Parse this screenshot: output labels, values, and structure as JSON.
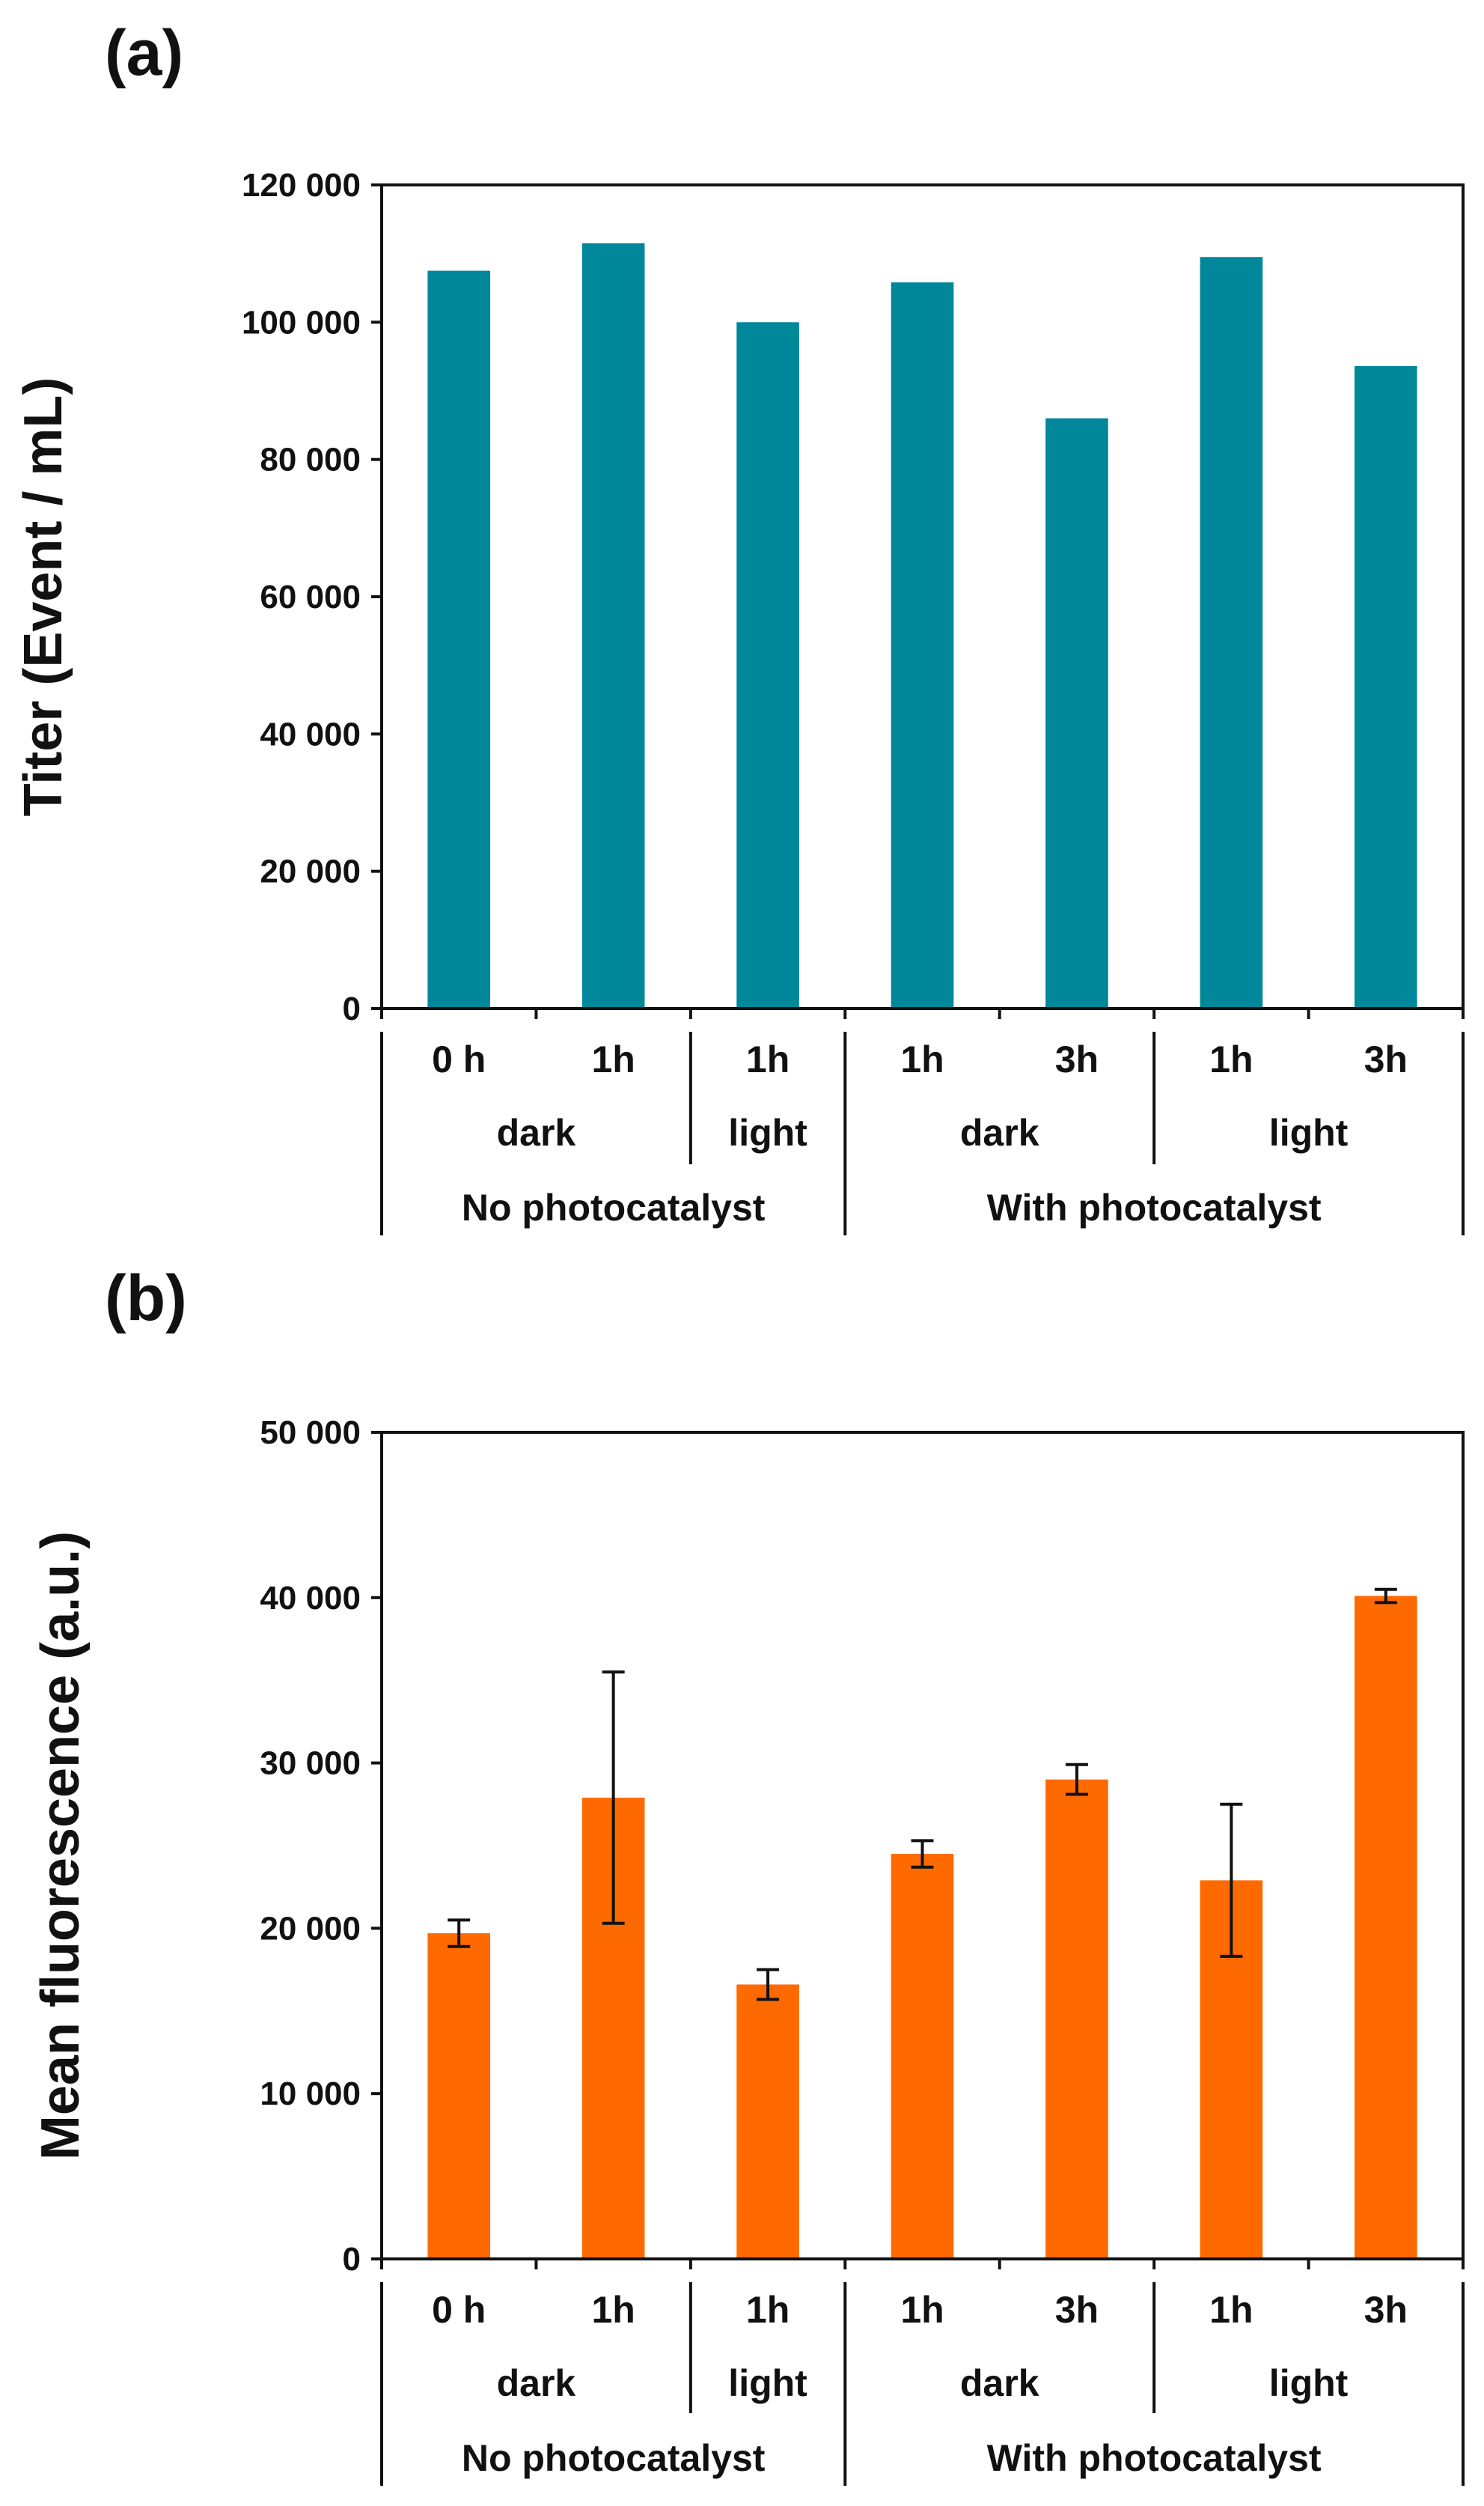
{
  "chart_data": [
    {
      "panel": "(a)",
      "type": "bar",
      "title": "",
      "ylabel": "Titer (Event / mL)",
      "xlabel": "",
      "ylim": [
        0,
        120000
      ],
      "yticks": [
        0,
        20000,
        40000,
        60000,
        80000,
        100000,
        120000
      ],
      "ytick_labels": [
        "0",
        "20 000",
        "40 000",
        "60 000",
        "80 000",
        "100 000",
        "120 000"
      ],
      "grid": false,
      "bar_color": "#00889A",
      "categories": [
        "0 h",
        "1h",
        "1h",
        "1h",
        "3h",
        "1h",
        "3h"
      ],
      "condition_groups": [
        {
          "label": "dark",
          "span": [
            0,
            1
          ]
        },
        {
          "label": "light",
          "span": [
            2,
            2
          ]
        },
        {
          "label": "dark",
          "span": [
            3,
            4
          ]
        },
        {
          "label": "light",
          "span": [
            5,
            6
          ]
        }
      ],
      "catalyst_groups": [
        {
          "label": "No photocatalyst",
          "span": [
            0,
            2
          ]
        },
        {
          "label": "With photocatalyst",
          "span": [
            3,
            6
          ]
        }
      ],
      "values": [
        107500,
        111500,
        100000,
        105800,
        86000,
        109500,
        93600
      ]
    },
    {
      "panel": "(b)",
      "type": "bar",
      "title": "",
      "ylabel": "Mean fluorescence (a.u.)",
      "xlabel": "",
      "ylim": [
        0,
        50000
      ],
      "yticks": [
        0,
        10000,
        20000,
        30000,
        40000,
        50000
      ],
      "ytick_labels": [
        "0",
        "10 000",
        "20 000",
        "30 000",
        "40 000",
        "50 000"
      ],
      "grid": false,
      "bar_color": "#FF6A00",
      "categories": [
        "0 h",
        "1h",
        "1h",
        "1h",
        "3h",
        "1h",
        "3h"
      ],
      "condition_groups": [
        {
          "label": "dark",
          "span": [
            0,
            1
          ]
        },
        {
          "label": "light",
          "span": [
            2,
            2
          ]
        },
        {
          "label": "dark",
          "span": [
            3,
            4
          ]
        },
        {
          "label": "light",
          "span": [
            5,
            6
          ]
        }
      ],
      "catalyst_groups": [
        {
          "label": "No photocatalyst",
          "span": [
            0,
            2
          ]
        },
        {
          "label": "With photocatalyst",
          "span": [
            3,
            6
          ]
        }
      ],
      "values": [
        19700,
        27900,
        16600,
        24500,
        29000,
        22900,
        40100
      ],
      "errors": [
        800,
        7600,
        900,
        800,
        900,
        4600,
        400
      ]
    }
  ]
}
